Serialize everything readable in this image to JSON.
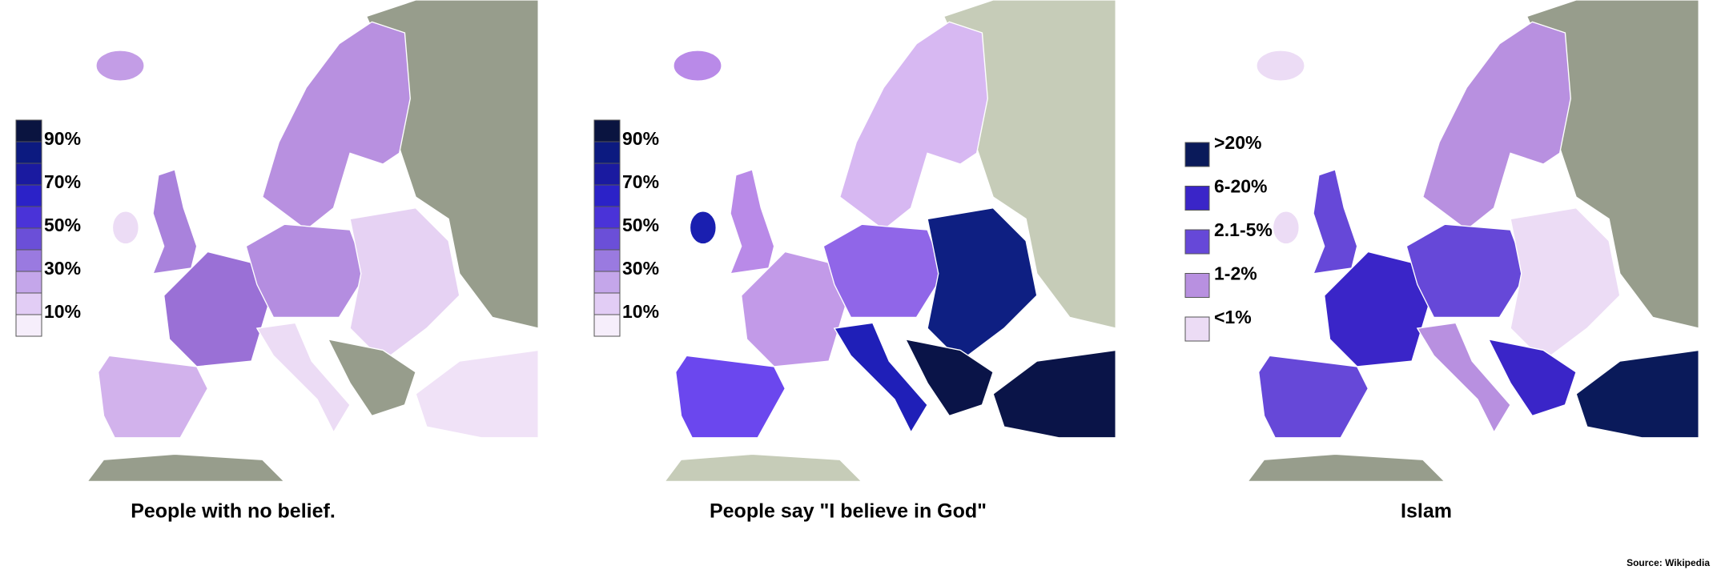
{
  "maps": [
    {
      "caption": "People with no belief.",
      "legend": [
        "90%",
        "70%",
        "50%",
        "30%",
        "10%"
      ]
    },
    {
      "caption": "People say \"I believe in God\"",
      "legend": [
        "90%",
        "70%",
        "50%",
        "30%",
        "10%"
      ]
    },
    {
      "caption": "Islam",
      "legend": [
        ">20%",
        "6-20%",
        "2.1-5%",
        "1-2%",
        "<1%"
      ]
    }
  ],
  "source": "Source: Wikipedia"
}
